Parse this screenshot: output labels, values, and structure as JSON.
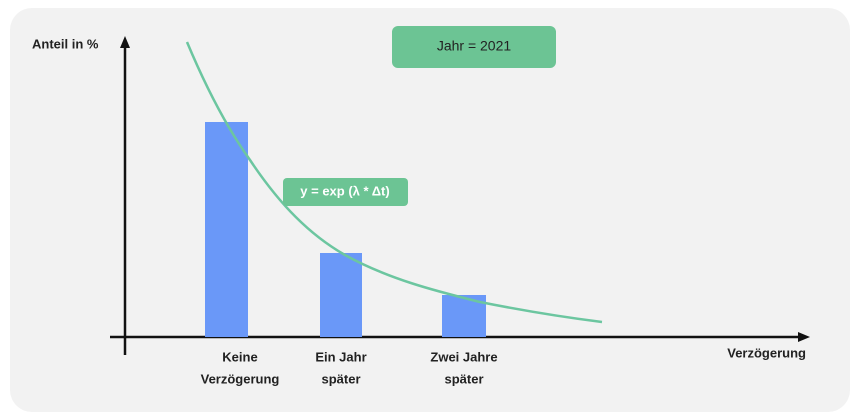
{
  "axes": {
    "y_label": "Anteil in %",
    "x_label": "Verzögerung"
  },
  "year_box": "Jahr = 2021",
  "formula": "y = exp (λ * Δt)",
  "categories": [
    {
      "lines": [
        "Keine",
        "Verzögerung"
      ]
    },
    {
      "lines": [
        "Ein Jahr",
        "später"
      ]
    },
    {
      "lines": [
        "Zwei Jahre",
        "später"
      ]
    }
  ]
}
